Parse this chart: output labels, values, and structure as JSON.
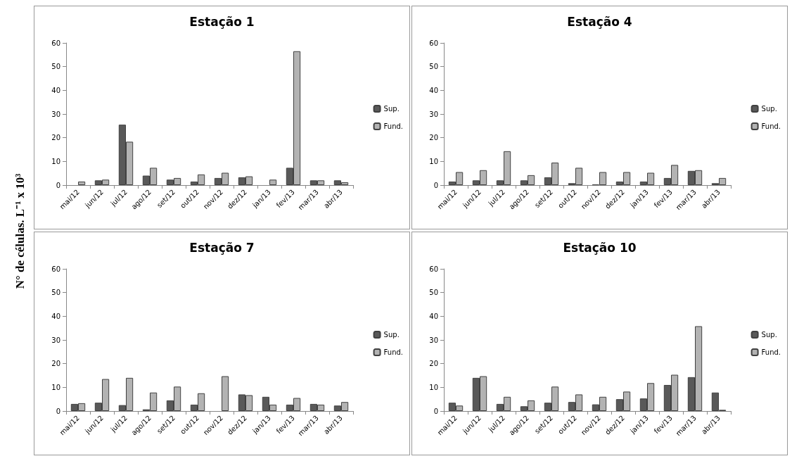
{
  "chart_data": [
    {
      "type": "bar",
      "title": "Estação 1",
      "ylabel": "N° de células. L⁻¹ x 10³",
      "categories": [
        "mai/12",
        "jun/12",
        "jul/12",
        "ago/12",
        "set/12",
        "out/12",
        "nov/12",
        "dez/12",
        "jan/13",
        "fev/13",
        "mar/13",
        "abr/13"
      ],
      "series": [
        {
          "name": "Sup.",
          "color": "#595959",
          "values": [
            null,
            2,
            25.5,
            4,
            2.3,
            1.5,
            3,
            3.3,
            null,
            7.3,
            2,
            2
          ]
        },
        {
          "name": "Fund.",
          "color": "#b3b3b3",
          "values": [
            1.5,
            2.3,
            18.3,
            7.3,
            3,
            4.5,
            5.2,
            3.7,
            2.3,
            56.5,
            2,
            1.2
          ]
        }
      ],
      "ylim": [
        0,
        60
      ],
      "yticks": [
        0,
        10,
        20,
        30,
        40,
        50,
        60
      ],
      "grid": false,
      "legend": "right"
    },
    {
      "type": "bar",
      "title": "Estação 4",
      "categories": [
        "mai/12",
        "jun/12",
        "jul/12",
        "ago/12",
        "set/12",
        "out/12",
        "nov/12",
        "dez/12",
        "jan/13",
        "fev/13",
        "mar/13",
        "abr/13"
      ],
      "series": [
        {
          "name": "Sup.",
          "color": "#595959",
          "values": [
            1.5,
            2,
            2,
            2,
            3.3,
            0.8,
            0.3,
            1.5,
            1.5,
            3,
            6,
            0.8
          ]
        },
        {
          "name": "Fund.",
          "color": "#b3b3b3",
          "values": [
            5.5,
            6.3,
            14.3,
            4.2,
            9.5,
            7.3,
            5.5,
            5.5,
            5.2,
            8.5,
            6.3,
            3
          ]
        }
      ],
      "ylim": [
        0,
        60
      ],
      "yticks": [
        0,
        10,
        20,
        30,
        40,
        50,
        60
      ],
      "grid": false,
      "legend": "right"
    },
    {
      "type": "bar",
      "title": "Estação 7",
      "categories": [
        "mai/12",
        "jun/12",
        "jul/12",
        "ago/12",
        "set/12",
        "out/12",
        "nov/12",
        "dez/12",
        "jan/13",
        "fev/13",
        "mar/13",
        "abr/13"
      ],
      "series": [
        {
          "name": "Sup.",
          "color": "#595959",
          "values": [
            3,
            3.5,
            2.5,
            0.7,
            4.5,
            2.7,
            null,
            7,
            6,
            2.7,
            3,
            2.3
          ]
        },
        {
          "name": "Fund.",
          "color": "#b3b3b3",
          "values": [
            3.3,
            13.5,
            14,
            7.8,
            10.3,
            7.5,
            14.7,
            6.7,
            2.7,
            5.5,
            2.7,
            3.8
          ]
        }
      ],
      "ylim": [
        0,
        60
      ],
      "yticks": [
        0,
        10,
        20,
        30,
        40,
        50,
        60
      ],
      "grid": false,
      "legend": "right"
    },
    {
      "type": "bar",
      "title": "Estação 10",
      "categories": [
        "mai/12",
        "jun/12",
        "jul/12",
        "ago/12",
        "set/12",
        "out/12",
        "nov/12",
        "dez/12",
        "jan/13",
        "fev/13",
        "mar/13",
        "abr/13"
      ],
      "series": [
        {
          "name": "Sup.",
          "color": "#595959",
          "values": [
            3.5,
            14,
            3,
            2,
            3.5,
            3.8,
            2.8,
            5,
            5.3,
            11,
            14.3,
            7.8
          ]
        },
        {
          "name": "Fund.",
          "color": "#b3b3b3",
          "values": [
            2.3,
            14.7,
            6,
            4.5,
            10.3,
            7,
            6,
            8.2,
            11.8,
            15.3,
            35.8,
            0.5
          ]
        }
      ],
      "ylim": [
        0,
        60
      ],
      "yticks": [
        0,
        10,
        20,
        30,
        40,
        50,
        60
      ],
      "grid": false,
      "legend": "right"
    }
  ]
}
